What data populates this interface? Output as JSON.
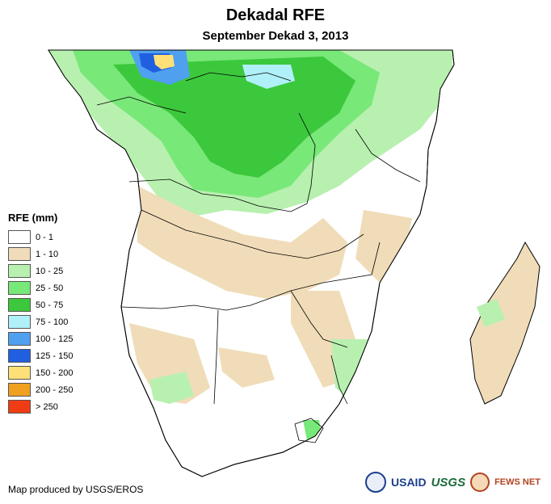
{
  "title": "Dekadal RFE",
  "subtitle": "September Dekad 3, 2013",
  "legend": {
    "title": "RFE (mm)",
    "items": [
      {
        "label": "0 - 1",
        "color": "#ffffff"
      },
      {
        "label": "1 - 10",
        "color": "#f0dcb8"
      },
      {
        "label": "10 - 25",
        "color": "#b8f0b0"
      },
      {
        "label": "25 - 50",
        "color": "#78e878"
      },
      {
        "label": "50 - 75",
        "color": "#3cc83c"
      },
      {
        "label": "75 - 100",
        "color": "#b0f0f8"
      },
      {
        "label": "100 - 125",
        "color": "#50a0f0"
      },
      {
        "label": "125 - 150",
        "color": "#2060e0"
      },
      {
        "label": "150 - 200",
        "color": "#ffe078"
      },
      {
        "label": "200 - 250",
        "color": "#f0a020"
      },
      {
        "label": "> 250",
        "color": "#f03c14"
      }
    ]
  },
  "credit": "Map produced by USGS/EROS",
  "logos": {
    "usaid": "USAID",
    "usgs": "USGS",
    "fews": "FEWS NET"
  }
}
